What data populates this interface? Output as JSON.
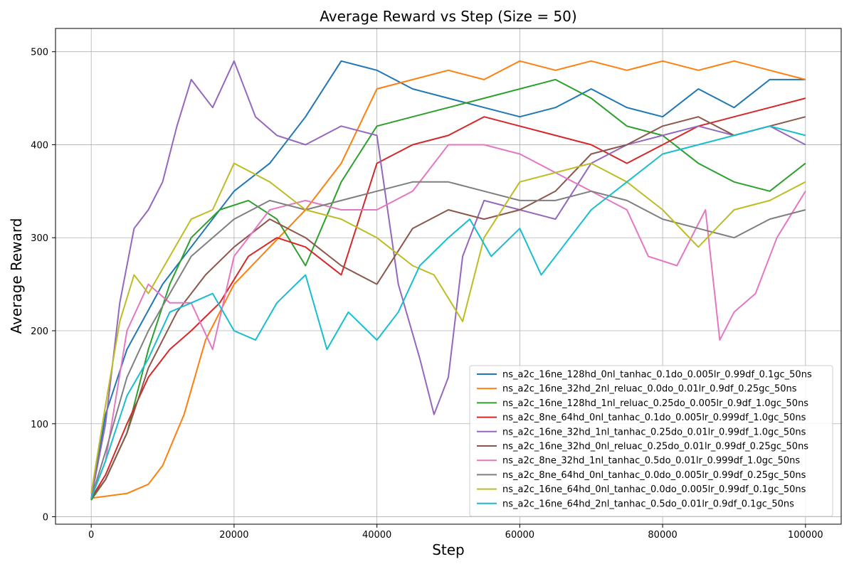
{
  "chart_data": {
    "type": "line",
    "title": "Average Reward vs Step (Size = 50)",
    "xlabel": "Step",
    "ylabel": "Average Reward",
    "xlim": [
      -5000,
      105000
    ],
    "ylim": [
      -8,
      525
    ],
    "xticks": [
      0,
      20000,
      40000,
      60000,
      80000,
      100000
    ],
    "xtick_labels": [
      "0",
      "20000",
      "40000",
      "60000",
      "80000",
      "100000"
    ],
    "yticks": [
      0,
      100,
      200,
      300,
      400,
      500
    ],
    "ytick_labels": [
      "0",
      "100",
      "200",
      "300",
      "400",
      "500"
    ],
    "grid": true,
    "legend_position": "lower right",
    "series": [
      {
        "name": "ns_a2c_16ne_128hd_0nl_tanhac_0.1do_0.005lr_0.99df_0.1gc_50ns",
        "color": "#1f77b4",
        "x": [
          0,
          2000,
          5000,
          10000,
          15000,
          20000,
          25000,
          30000,
          35000,
          40000,
          45000,
          50000,
          55000,
          60000,
          65000,
          70000,
          75000,
          80000,
          85000,
          90000,
          95000,
          100000
        ],
        "y": [
          18,
          110,
          180,
          250,
          300,
          350,
          380,
          430,
          490,
          480,
          460,
          450,
          440,
          430,
          440,
          460,
          440,
          430,
          460,
          440,
          470,
          470
        ]
      },
      {
        "name": "ns_a2c_16ne_32hd_2nl_reluac_0.0do_0.01lr_0.9df_0.25gc_50ns",
        "color": "#ff7f0e",
        "x": [
          0,
          2000,
          5000,
          8000,
          10000,
          13000,
          16000,
          20000,
          25000,
          30000,
          35000,
          40000,
          45000,
          50000,
          55000,
          60000,
          65000,
          70000,
          75000,
          80000,
          85000,
          90000,
          95000,
          100000
        ],
        "y": [
          20,
          22,
          25,
          35,
          55,
          110,
          190,
          250,
          290,
          330,
          380,
          460,
          470,
          480,
          470,
          490,
          480,
          490,
          480,
          490,
          480,
          490,
          480,
          470
        ]
      },
      {
        "name": "ns_a2c_16ne_128hd_1nl_reluac_0.25do_0.005lr_0.9df_1.0gc_50ns",
        "color": "#2ca02c",
        "x": [
          0,
          2000,
          5000,
          8000,
          11000,
          14000,
          18000,
          22000,
          26000,
          30000,
          35000,
          40000,
          45000,
          50000,
          55000,
          60000,
          65000,
          70000,
          75000,
          80000,
          85000,
          90000,
          95000,
          100000
        ],
        "y": [
          18,
          40,
          90,
          180,
          250,
          300,
          330,
          340,
          320,
          270,
          360,
          420,
          430,
          440,
          450,
          460,
          470,
          450,
          420,
          410,
          380,
          360,
          350,
          380
        ]
      },
      {
        "name": "ns_a2c_8ne_64hd_0nl_tanhac_0.1do_0.005lr_0.999df_1.0gc_50ns",
        "color": "#d62728",
        "x": [
          0,
          2000,
          5000,
          8000,
          11000,
          14000,
          18000,
          22000,
          26000,
          30000,
          35000,
          40000,
          45000,
          50000,
          55000,
          60000,
          65000,
          70000,
          75000,
          80000,
          85000,
          90000,
          95000,
          100000
        ],
        "y": [
          20,
          45,
          100,
          150,
          180,
          200,
          230,
          280,
          300,
          290,
          260,
          380,
          400,
          410,
          430,
          420,
          410,
          400,
          380,
          400,
          420,
          430,
          440,
          450
        ]
      },
      {
        "name": "ns_a2c_16ne_32hd_1nl_tanhac_0.25do_0.01lr_0.99df_1.0gc_50ns",
        "color": "#9467bd",
        "x": [
          0,
          2000,
          4000,
          6000,
          8000,
          10000,
          12000,
          14000,
          17000,
          20000,
          23000,
          26000,
          30000,
          35000,
          40000,
          43000,
          46000,
          48000,
          50000,
          52000,
          55000,
          60000,
          65000,
          70000,
          75000,
          80000,
          85000,
          90000,
          95000,
          100000
        ],
        "y": [
          20,
          100,
          230,
          310,
          330,
          360,
          420,
          470,
          440,
          490,
          430,
          410,
          400,
          420,
          410,
          250,
          170,
          110,
          150,
          280,
          340,
          330,
          320,
          380,
          400,
          410,
          420,
          410,
          420,
          400
        ]
      },
      {
        "name": "ns_a2c_16ne_32hd_0nl_reluac_0.25do_0.01lr_0.99df_0.25gc_50ns",
        "color": "#8c564b",
        "x": [
          0,
          2000,
          5000,
          8000,
          12000,
          16000,
          20000,
          25000,
          30000,
          35000,
          40000,
          45000,
          50000,
          55000,
          60000,
          65000,
          70000,
          75000,
          80000,
          85000,
          90000,
          95000,
          100000
        ],
        "y": [
          20,
          40,
          90,
          160,
          220,
          260,
          290,
          320,
          300,
          270,
          250,
          310,
          330,
          320,
          330,
          350,
          390,
          400,
          420,
          430,
          410,
          420,
          430
        ]
      },
      {
        "name": "ns_a2c_8ne_32hd_1nl_tanhac_0.5do_0.01lr_0.999df_1.0gc_50ns",
        "color": "#e377c2",
        "x": [
          0,
          2000,
          5000,
          8000,
          11000,
          14000,
          17000,
          20000,
          25000,
          30000,
          35000,
          40000,
          45000,
          50000,
          55000,
          60000,
          65000,
          70000,
          75000,
          78000,
          82000,
          86000,
          88000,
          90000,
          93000,
          96000,
          100000
        ],
        "y": [
          20,
          60,
          200,
          250,
          230,
          230,
          180,
          280,
          330,
          340,
          330,
          330,
          350,
          400,
          400,
          390,
          370,
          350,
          330,
          280,
          270,
          330,
          190,
          220,
          240,
          300,
          350
        ]
      },
      {
        "name": "ns_a2c_8ne_64hd_0nl_tanhac_0.0do_0.005lr_0.99df_0.25gc_50ns",
        "color": "#7f7f7f",
        "x": [
          0,
          2000,
          5000,
          8000,
          11000,
          14000,
          17000,
          20000,
          25000,
          30000,
          35000,
          40000,
          45000,
          50000,
          55000,
          60000,
          65000,
          70000,
          75000,
          80000,
          85000,
          90000,
          95000,
          100000
        ],
        "y": [
          20,
          70,
          150,
          200,
          240,
          280,
          300,
          320,
          340,
          330,
          340,
          350,
          360,
          360,
          350,
          340,
          340,
          350,
          340,
          320,
          310,
          300,
          320,
          330
        ]
      },
      {
        "name": "ns_a2c_16ne_64hd_0nl_tanhac_0.0do_0.005lr_0.99df_0.1gc_50ns",
        "color": "#bcbd22",
        "x": [
          0,
          2000,
          4000,
          6000,
          8000,
          11000,
          14000,
          17000,
          20000,
          25000,
          30000,
          35000,
          40000,
          45000,
          48000,
          52000,
          55000,
          60000,
          65000,
          70000,
          75000,
          80000,
          85000,
          90000,
          95000,
          100000
        ],
        "y": [
          25,
          120,
          210,
          260,
          240,
          280,
          320,
          330,
          380,
          360,
          330,
          320,
          300,
          270,
          260,
          210,
          300,
          360,
          370,
          380,
          360,
          330,
          290,
          330,
          340,
          360
        ]
      },
      {
        "name": "ns_a2c_16ne_64hd_2nl_tanhac_0.5do_0.01lr_0.9df_0.1gc_50ns",
        "color": "#17becf",
        "x": [
          0,
          2000,
          5000,
          8000,
          11000,
          14000,
          17000,
          20000,
          23000,
          26000,
          30000,
          33000,
          36000,
          40000,
          43000,
          46000,
          50000,
          53000,
          56000,
          60000,
          63000,
          66000,
          70000,
          75000,
          80000,
          85000,
          90000,
          95000,
          100000
        ],
        "y": [
          20,
          60,
          130,
          170,
          220,
          230,
          240,
          200,
          190,
          230,
          260,
          180,
          220,
          190,
          220,
          270,
          300,
          320,
          280,
          310,
          260,
          290,
          330,
          360,
          390,
          400,
          410,
          420,
          410
        ]
      }
    ]
  }
}
